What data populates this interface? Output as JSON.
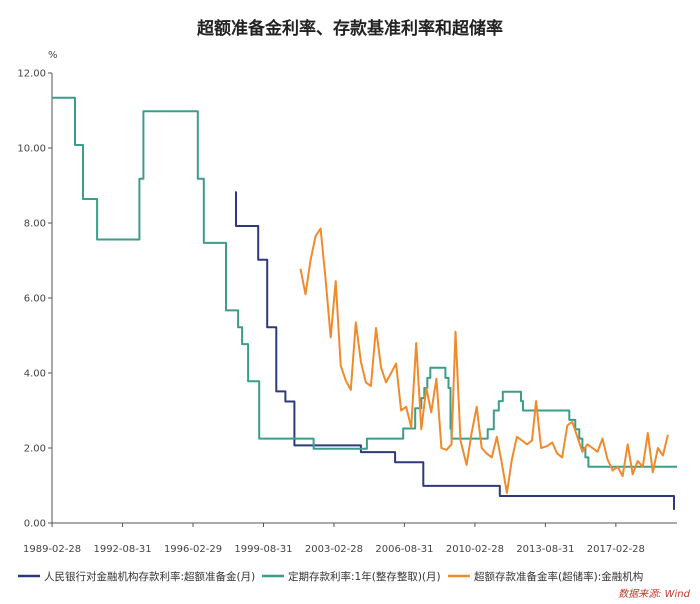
{
  "chart_data": {
    "type": "line",
    "title": "超额准备金利率、存款基准利率和超储率",
    "unit": "%",
    "ylim": [
      0,
      12
    ],
    "y_ticks": [
      "0.00",
      "2.00",
      "4.00",
      "6.00",
      "8.00",
      "10.00",
      "12.00"
    ],
    "x_ticks": [
      "1989-02-28",
      "1992-08-31",
      "1996-02-29",
      "1999-08-31",
      "2003-02-28",
      "2006-08-31",
      "2010-02-28",
      "2013-08-31",
      "2017-02-28"
    ],
    "xlim": [
      1989.16,
      2020.2
    ],
    "legend_position": "bottom",
    "source": "数据来源: Wind",
    "series": [
      {
        "name": "人民银行对金融机构存款利率:超额准备金(月)",
        "color": "#2e3a7a",
        "step": true,
        "points": [
          [
            1998.25,
            8.82
          ],
          [
            1998.3,
            7.92
          ],
          [
            1999.4,
            7.02
          ],
          [
            1999.85,
            5.22
          ],
          [
            2000.3,
            3.51
          ],
          [
            2000.75,
            3.24
          ],
          [
            2001.2,
            2.07
          ],
          [
            2004.5,
            1.89
          ],
          [
            2006.2,
            1.62
          ],
          [
            2007.6,
            0.99
          ],
          [
            2011.4,
            0.72
          ],
          [
            2019.95,
            0.72
          ],
          [
            2020.05,
            0.35
          ]
        ]
      },
      {
        "name": "定期存款利率:1年(整存整取)(月)",
        "color": "#3a9e8a",
        "step": true,
        "points": [
          [
            1989.16,
            11.34
          ],
          [
            1990.3,
            10.08
          ],
          [
            1990.7,
            8.64
          ],
          [
            1991.4,
            7.56
          ],
          [
            1993.5,
            9.18
          ],
          [
            1993.7,
            10.98
          ],
          [
            1996.4,
            9.18
          ],
          [
            1996.7,
            7.47
          ],
          [
            1997.8,
            5.67
          ],
          [
            1998.4,
            5.22
          ],
          [
            1998.6,
            4.77
          ],
          [
            1998.9,
            3.78
          ],
          [
            1999.45,
            2.25
          ],
          [
            2002.15,
            1.98
          ],
          [
            2004.8,
            2.25
          ],
          [
            2006.6,
            2.52
          ],
          [
            2007.2,
            3.06
          ],
          [
            2007.5,
            3.33
          ],
          [
            2007.65,
            3.6
          ],
          [
            2007.8,
            3.87
          ],
          [
            2007.95,
            4.14
          ],
          [
            2008.7,
            3.87
          ],
          [
            2008.85,
            3.6
          ],
          [
            2008.95,
            2.52
          ],
          [
            2009.0,
            2.25
          ],
          [
            2010.8,
            2.5
          ],
          [
            2011.1,
            3.0
          ],
          [
            2011.35,
            3.25
          ],
          [
            2011.55,
            3.5
          ],
          [
            2012.45,
            3.25
          ],
          [
            2012.55,
            3.0
          ],
          [
            2014.85,
            2.75
          ],
          [
            2015.15,
            2.5
          ],
          [
            2015.35,
            2.25
          ],
          [
            2015.5,
            2.0
          ],
          [
            2015.65,
            1.75
          ],
          [
            2015.8,
            1.5
          ],
          [
            2020.2,
            1.5
          ]
        ]
      },
      {
        "name": "超额存款准备金率(超储率):金融机构",
        "color": "#f08a2b",
        "step": false,
        "points": [
          [
            2001.5,
            6.78
          ],
          [
            2001.75,
            6.1
          ],
          [
            2002.0,
            7.0
          ],
          [
            2002.25,
            7.65
          ],
          [
            2002.5,
            7.85
          ],
          [
            2002.75,
            6.5
          ],
          [
            2003.0,
            4.95
          ],
          [
            2003.25,
            6.45
          ],
          [
            2003.5,
            4.2
          ],
          [
            2003.75,
            3.8
          ],
          [
            2004.0,
            3.55
          ],
          [
            2004.25,
            5.35
          ],
          [
            2004.5,
            4.3
          ],
          [
            2004.75,
            3.75
          ],
          [
            2005.0,
            3.65
          ],
          [
            2005.25,
            5.2
          ],
          [
            2005.5,
            4.15
          ],
          [
            2005.75,
            3.75
          ],
          [
            2006.0,
            4.0
          ],
          [
            2006.25,
            4.25
          ],
          [
            2006.5,
            3.0
          ],
          [
            2006.75,
            3.1
          ],
          [
            2007.0,
            2.55
          ],
          [
            2007.25,
            4.8
          ],
          [
            2007.5,
            2.5
          ],
          [
            2007.75,
            3.6
          ],
          [
            2008.0,
            2.95
          ],
          [
            2008.25,
            3.85
          ],
          [
            2008.5,
            2.0
          ],
          [
            2008.75,
            1.95
          ],
          [
            2009.0,
            2.1
          ],
          [
            2009.2,
            5.1
          ],
          [
            2009.45,
            2.2
          ],
          [
            2009.75,
            1.55
          ],
          [
            2010.0,
            2.4
          ],
          [
            2010.25,
            3.1
          ],
          [
            2010.5,
            2.0
          ],
          [
            2010.75,
            1.85
          ],
          [
            2011.0,
            1.75
          ],
          [
            2011.25,
            2.3
          ],
          [
            2011.5,
            1.6
          ],
          [
            2011.75,
            0.8
          ],
          [
            2012.0,
            1.7
          ],
          [
            2012.25,
            2.3
          ],
          [
            2012.5,
            2.2
          ],
          [
            2012.75,
            2.1
          ],
          [
            2013.0,
            2.2
          ],
          [
            2013.2,
            3.25
          ],
          [
            2013.45,
            2.0
          ],
          [
            2013.75,
            2.05
          ],
          [
            2014.0,
            2.15
          ],
          [
            2014.25,
            1.85
          ],
          [
            2014.5,
            1.75
          ],
          [
            2014.75,
            2.6
          ],
          [
            2015.0,
            2.7
          ],
          [
            2015.25,
            2.3
          ],
          [
            2015.5,
            1.9
          ],
          [
            2015.75,
            2.1
          ],
          [
            2016.0,
            2.0
          ],
          [
            2016.25,
            1.9
          ],
          [
            2016.5,
            2.25
          ],
          [
            2016.75,
            1.7
          ],
          [
            2017.0,
            1.4
          ],
          [
            2017.25,
            1.5
          ],
          [
            2017.5,
            1.25
          ],
          [
            2017.75,
            2.1
          ],
          [
            2018.0,
            1.3
          ],
          [
            2018.25,
            1.65
          ],
          [
            2018.5,
            1.5
          ],
          [
            2018.75,
            2.4
          ],
          [
            2019.0,
            1.35
          ],
          [
            2019.25,
            2.0
          ],
          [
            2019.5,
            1.8
          ],
          [
            2019.75,
            2.35
          ]
        ]
      }
    ]
  }
}
